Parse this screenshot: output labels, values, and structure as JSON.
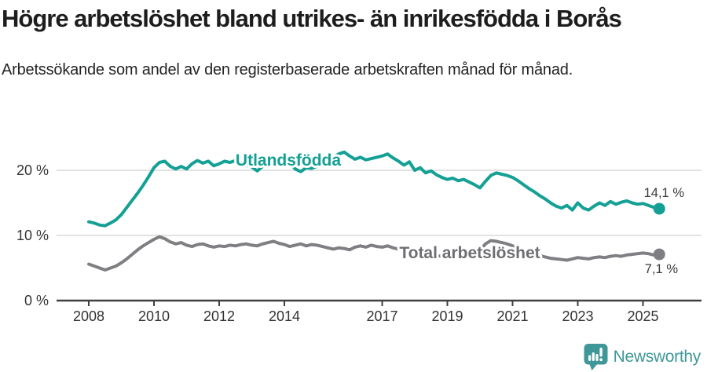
{
  "title": "Högre arbetslöshet bland utrikes- än inrikesfödda i Borås",
  "subtitle": "Arbetssökande som andel av den registerbaserade arbetskraften månad för månad.",
  "logo": {
    "text": "Newsworthy",
    "color": "#3f9897"
  },
  "colors": {
    "foreign_born_line": "#14a095",
    "total_line": "#7f7f83",
    "total_label": "#6e6e72",
    "axis": "#404040",
    "gridline": "#d9d9d9",
    "tick_label": "#333333",
    "annotation": "#3a3a3a"
  },
  "chart_data": {
    "type": "line",
    "title": "Högre arbetslöshet bland utrikes- än inrikesfödda i Borås",
    "subtitle": "Arbetssökande som andel av den registerbaserade arbetskraften månad för månad.",
    "x_unit": "year",
    "x_start": 2008.0,
    "x_step_years": 0.1666667,
    "x_end": 2025.5,
    "x_ticks": [
      2008,
      2010,
      2012,
      2014,
      2017,
      2019,
      2021,
      2023,
      2025
    ],
    "y_ticks": [
      {
        "value": 0,
        "label": "0 %"
      },
      {
        "value": 10,
        "label": "10 %"
      },
      {
        "value": 20,
        "label": "20 %"
      }
    ],
    "ylim": [
      0,
      24.5
    ],
    "grid": "horizontal-only",
    "legend_position": "inline-labels",
    "series": [
      {
        "name": "Utlandsfödda",
        "color": "#14a095",
        "end_label": "14,1 %",
        "end_value": 14.1,
        "values": [
          12.1,
          11.9,
          11.6,
          11.5,
          11.9,
          12.4,
          13.2,
          14.3,
          15.4,
          16.5,
          17.7,
          19.0,
          20.4,
          21.2,
          21.4,
          20.6,
          20.2,
          20.6,
          20.2,
          21.0,
          21.5,
          21.1,
          21.4,
          20.7,
          21.0,
          21.4,
          21.2,
          21.5,
          21.2,
          20.9,
          20.5,
          19.9,
          20.6,
          21.0,
          21.5,
          21.1,
          20.8,
          21.2,
          20.2,
          19.8,
          20.4,
          20.3,
          20.6,
          21.0,
          21.6,
          22.0,
          22.5,
          22.8,
          22.2,
          21.7,
          22.0,
          21.6,
          21.8,
          22.0,
          22.2,
          22.5,
          21.9,
          21.4,
          20.8,
          21.3,
          20.0,
          20.4,
          19.6,
          19.9,
          19.3,
          18.9,
          18.6,
          18.8,
          18.4,
          18.6,
          18.2,
          17.8,
          17.3,
          18.3,
          19.2,
          19.6,
          19.4,
          19.2,
          18.9,
          18.4,
          17.8,
          17.2,
          16.7,
          16.1,
          15.6,
          15.0,
          14.5,
          14.2,
          14.6,
          13.9,
          15.0,
          14.2,
          13.9,
          14.5,
          15.0,
          14.6,
          15.2,
          14.8,
          15.1,
          15.3,
          15.0,
          14.8,
          14.9,
          14.6,
          14.3,
          14.1
        ]
      },
      {
        "name": "Total arbetslöshet",
        "color": "#7f7f83",
        "label_color": "#6e6e72",
        "end_label": "7,1 %",
        "end_value": 7.1,
        "values": [
          5.6,
          5.3,
          5.0,
          4.7,
          5.0,
          5.3,
          5.8,
          6.4,
          7.1,
          7.8,
          8.4,
          8.9,
          9.4,
          9.8,
          9.5,
          9.0,
          8.7,
          8.9,
          8.5,
          8.3,
          8.6,
          8.7,
          8.4,
          8.2,
          8.4,
          8.3,
          8.5,
          8.4,
          8.6,
          8.7,
          8.5,
          8.4,
          8.7,
          8.9,
          9.1,
          8.8,
          8.6,
          8.3,
          8.5,
          8.7,
          8.4,
          8.6,
          8.5,
          8.3,
          8.1,
          7.9,
          8.1,
          8.0,
          7.8,
          8.2,
          8.4,
          8.2,
          8.5,
          8.3,
          8.2,
          8.4,
          8.1,
          7.9,
          7.8,
          7.6,
          7.4,
          7.2,
          7.0,
          7.1,
          6.9,
          6.8,
          6.9,
          7.0,
          7.2,
          7.3,
          7.2,
          7.4,
          7.7,
          8.7,
          9.2,
          9.1,
          8.9,
          8.7,
          8.4,
          8.1,
          7.7,
          7.4,
          7.1,
          6.9,
          6.7,
          6.5,
          6.4,
          6.3,
          6.2,
          6.4,
          6.6,
          6.5,
          6.4,
          6.6,
          6.7,
          6.6,
          6.8,
          6.9,
          6.8,
          7.0,
          7.1,
          7.2,
          7.3,
          7.2,
          7.0,
          7.1
        ]
      }
    ]
  }
}
